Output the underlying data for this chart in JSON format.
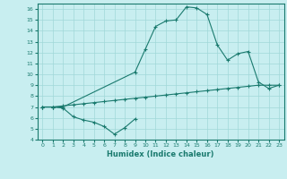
{
  "xlabel": "Humidex (Indice chaleur)",
  "line_color": "#1a7a6e",
  "bg_color": "#c8eef0",
  "grid_color": "#a0d8d8",
  "line1_x": [
    0,
    1,
    2,
    9,
    10,
    11,
    12,
    13,
    14,
    15,
    16,
    17,
    18,
    19,
    20,
    21,
    22,
    23
  ],
  "line1_y": [
    7.0,
    7.0,
    7.0,
    10.2,
    12.3,
    14.4,
    14.9,
    15.0,
    16.2,
    16.1,
    15.5,
    12.7,
    11.3,
    11.9,
    12.1,
    9.3,
    8.7,
    9.0
  ],
  "line2_x": [
    0,
    1,
    2,
    3,
    4,
    5,
    6,
    7,
    8,
    9,
    10,
    11,
    12,
    13,
    14,
    15,
    16,
    17,
    18,
    19,
    20,
    21,
    22,
    23
  ],
  "line2_y": [
    7.0,
    7.0,
    7.1,
    7.2,
    7.3,
    7.4,
    7.5,
    7.6,
    7.7,
    7.8,
    7.9,
    8.0,
    8.1,
    8.2,
    8.3,
    8.4,
    8.5,
    8.6,
    8.7,
    8.8,
    8.9,
    9.0,
    9.0,
    9.0
  ],
  "line3_x": [
    0,
    1,
    2,
    3,
    4,
    5,
    6,
    7,
    8,
    9
  ],
  "line3_y": [
    7.0,
    7.0,
    6.9,
    6.1,
    5.8,
    5.6,
    5.2,
    4.5,
    5.1,
    5.9
  ],
  "xlim": [
    -0.5,
    23.5
  ],
  "ylim": [
    4,
    16.5
  ],
  "yticks": [
    4,
    5,
    6,
    7,
    8,
    9,
    10,
    11,
    12,
    13,
    14,
    15,
    16
  ],
  "xticks": [
    0,
    1,
    2,
    3,
    4,
    5,
    6,
    7,
    8,
    9,
    10,
    11,
    12,
    13,
    14,
    15,
    16,
    17,
    18,
    19,
    20,
    21,
    22,
    23
  ]
}
